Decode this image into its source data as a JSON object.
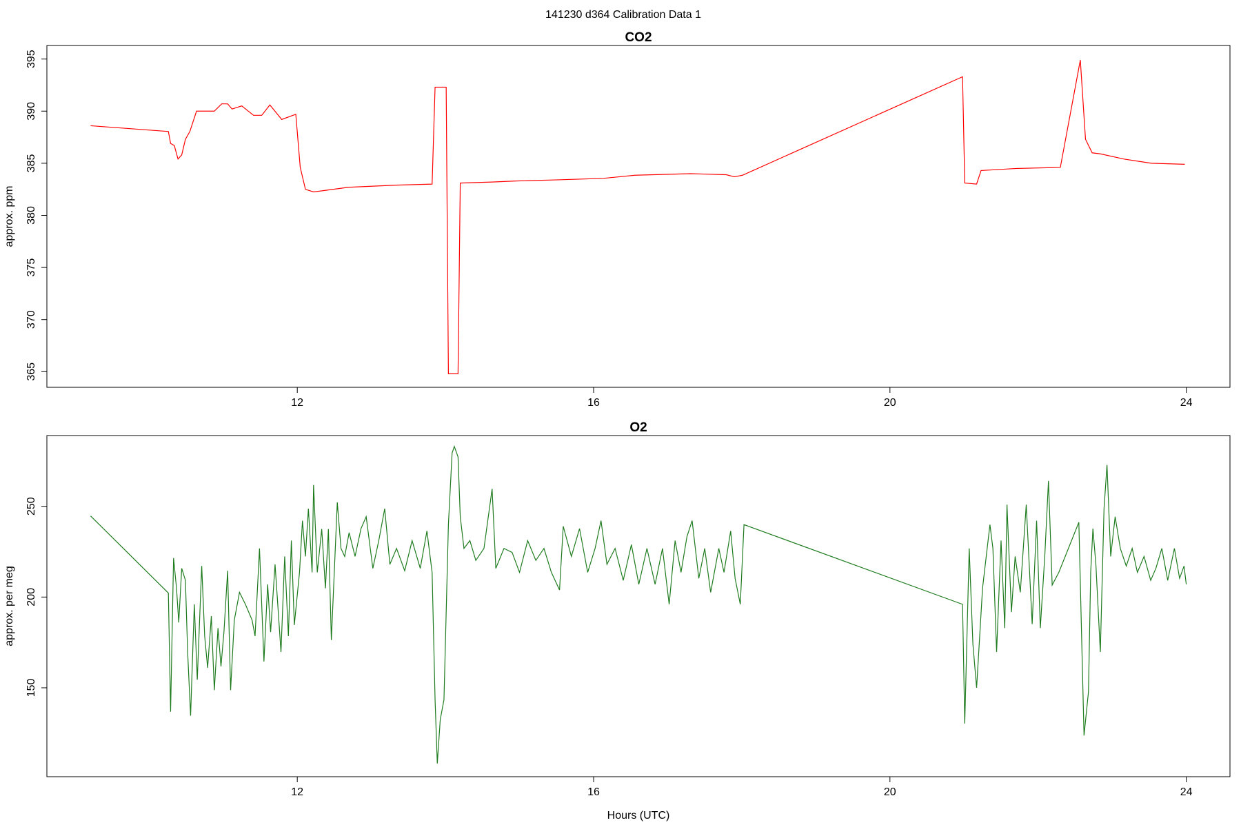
{
  "suptitle": "141230   d364   Calibration Data 1",
  "chart_data": [
    {
      "type": "line",
      "title": "CO2",
      "ylabel": "approx. ppm",
      "xlim": [
        8.62,
        24.59
      ],
      "xticks": [
        12,
        16,
        20,
        24
      ],
      "ylim": [
        363.5,
        396.3
      ],
      "yticks": [
        365,
        370,
        375,
        380,
        385,
        390,
        395
      ],
      "series": [
        {
          "color": "#ff0000",
          "x": [
            9.21,
            10.26,
            10.29,
            10.34,
            10.39,
            10.44,
            10.49,
            10.55,
            10.64,
            10.77,
            10.88,
            10.98,
            11.06,
            11.12,
            11.25,
            11.41,
            11.52,
            11.63,
            11.79,
            11.98,
            12.04,
            12.11,
            12.22,
            12.7,
            13.34,
            13.82,
            13.86,
            14.01,
            14.04,
            14.17,
            14.2,
            14.63,
            14.95,
            15.48,
            16.13,
            16.56,
            17.31,
            17.79,
            17.9,
            18.01,
            20.98,
            21.01,
            21.17,
            21.23,
            21.71,
            22.3,
            22.57,
            22.64,
            22.73,
            22.84,
            23.16,
            23.53,
            23.98
          ],
          "values": [
            388.6,
            388.05,
            386.9,
            386.7,
            385.4,
            385.8,
            387.3,
            388.05,
            390.0,
            390.0,
            390.0,
            390.7,
            390.7,
            390.2,
            390.5,
            389.6,
            389.6,
            390.6,
            389.2,
            389.7,
            384.6,
            382.5,
            382.25,
            382.7,
            382.9,
            383.0,
            392.3,
            392.3,
            364.8,
            364.8,
            383.1,
            383.2,
            383.3,
            383.4,
            383.55,
            383.85,
            384.0,
            383.9,
            383.7,
            383.85,
            393.3,
            383.1,
            383.0,
            384.3,
            384.5,
            384.6,
            394.9,
            387.3,
            386.0,
            385.9,
            385.4,
            385.0,
            384.9
          ]
        }
      ]
    },
    {
      "type": "line",
      "title": "O2",
      "ylabel": "approx. per meg",
      "xlabel": "Hours (UTC)",
      "xlim": [
        8.62,
        24.59
      ],
      "xticks": [
        12,
        16,
        20,
        24
      ],
      "ylim": [
        101,
        289
      ],
      "yticks": [
        150,
        200,
        250
      ],
      "series": [
        {
          "color": "#1e7b1e",
          "x": [
            9.21,
            10.26,
            10.29,
            10.33,
            10.37,
            10.4,
            10.44,
            10.49,
            10.52,
            10.56,
            10.61,
            10.65,
            10.71,
            10.75,
            10.79,
            10.84,
            10.88,
            10.93,
            10.97,
            11.01,
            11.06,
            11.1,
            11.15,
            11.22,
            11.3,
            11.39,
            11.43,
            11.49,
            11.55,
            11.6,
            11.64,
            11.7,
            11.78,
            11.83,
            11.88,
            11.92,
            11.96,
            12.03,
            12.07,
            12.11,
            12.15,
            12.2,
            12.22,
            12.27,
            12.33,
            12.38,
            12.42,
            12.46,
            12.54,
            12.59,
            12.64,
            12.7,
            12.78,
            12.86,
            12.93,
            13.02,
            13.1,
            13.18,
            13.25,
            13.34,
            13.45,
            13.55,
            13.66,
            13.75,
            13.82,
            13.86,
            13.89,
            13.93,
            13.98,
            14.04,
            14.09,
            14.12,
            14.17,
            14.2,
            14.25,
            14.33,
            14.41,
            14.52,
            14.63,
            14.68,
            14.79,
            14.9,
            15.0,
            15.11,
            15.22,
            15.33,
            15.43,
            15.54,
            15.59,
            15.7,
            15.81,
            15.92,
            16.02,
            16.1,
            16.18,
            16.29,
            16.4,
            16.51,
            16.61,
            16.72,
            16.83,
            16.93,
            17.02,
            17.1,
            17.18,
            17.26,
            17.33,
            17.42,
            17.5,
            17.58,
            17.69,
            17.76,
            17.85,
            17.91,
            17.98,
            18.03,
            20.98,
            21.01,
            21.07,
            21.12,
            21.17,
            21.25,
            21.3,
            21.35,
            21.39,
            21.44,
            21.5,
            21.55,
            21.58,
            21.64,
            21.69,
            21.76,
            21.84,
            21.92,
            21.98,
            22.03,
            22.09,
            22.14,
            22.19,
            22.28,
            22.55,
            22.62,
            22.68,
            22.71,
            22.74,
            22.78,
            22.84,
            22.89,
            22.93,
            22.98,
            23.04,
            23.11,
            23.19,
            23.27,
            23.34,
            23.43,
            23.52,
            23.59,
            23.67,
            23.75,
            23.84,
            23.91,
            23.97,
            24.0
          ],
          "values": [
            244.7,
            202.2,
            136.8,
            221.5,
            204.8,
            186,
            215.8,
            209.2,
            169.7,
            134.6,
            196,
            154.4,
            217.1,
            178.5,
            161,
            189.5,
            148.7,
            182.9,
            161.8,
            180.7,
            214.5,
            148.7,
            187.3,
            202.6,
            196,
            187.3,
            178.5,
            226.8,
            164.5,
            207,
            180.7,
            218,
            169.7,
            222.4,
            178.5,
            231.1,
            184.6,
            213.6,
            242.1,
            222.4,
            248.7,
            213.6,
            261.8,
            213.6,
            237.5,
            204.8,
            237.5,
            176.3,
            252.2,
            226.8,
            222.4,
            235.5,
            222.4,
            237.7,
            244.3,
            215.8,
            231.1,
            248.7,
            218,
            226.8,
            214.5,
            231.1,
            215.8,
            236.4,
            213.6,
            143.4,
            108.3,
            132.5,
            143.4,
            239.9,
            279.4,
            283,
            277.2,
            244.3,
            226.8,
            231.1,
            220.2,
            226.8,
            259.6,
            215.8,
            226.8,
            224.6,
            213.6,
            231.1,
            220.2,
            226.8,
            213.6,
            203.9,
            239,
            222.4,
            237.7,
            213.6,
            226.8,
            242.1,
            218,
            226.8,
            209.2,
            228.9,
            207,
            226.8,
            207,
            226.8,
            196,
            231.1,
            213.6,
            233.3,
            242.1,
            210.3,
            226.8,
            202.6,
            226.8,
            213.6,
            236.4,
            210.3,
            196,
            239.9,
            196,
            130.3,
            226.8,
            174.1,
            150,
            204.8,
            222.4,
            239.9,
            226.8,
            169.7,
            231.1,
            182.9,
            250.9,
            191.7,
            222.4,
            202.6,
            250.9,
            185.1,
            242.1,
            182.9,
            222.4,
            264,
            206.6,
            213.6,
            241.2,
            123.7,
            147.8,
            213.6,
            237.7,
            218,
            169.7,
            248.7,
            272.8,
            222.4,
            244.3,
            226.8,
            217.1,
            226.8,
            213.6,
            222.4,
            209.2,
            215.8,
            226.8,
            209.2,
            226.8,
            210.3,
            217.1,
            207
          ]
        }
      ]
    }
  ]
}
